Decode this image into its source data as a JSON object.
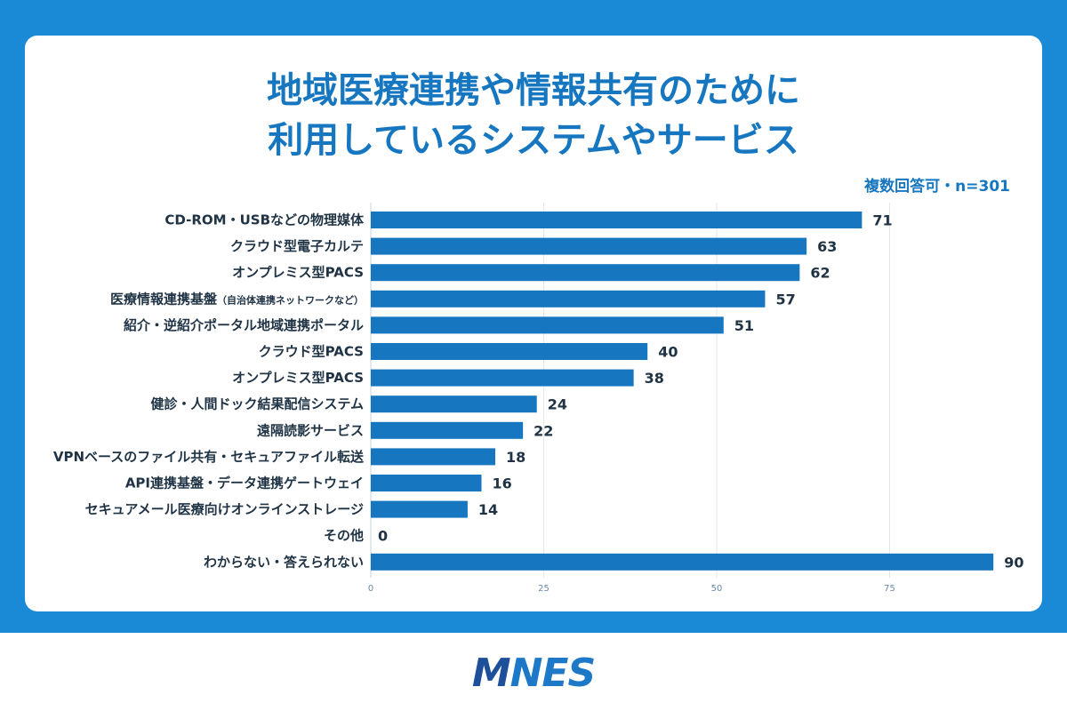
{
  "title_lines": [
    "地域医療連携や情報共有のために",
    "利用しているシステムやサービス"
  ],
  "note": "複数回答可・n=301",
  "brand": {
    "logo_prefix": "M",
    "logo_text": "NES",
    "color_primary": "#1e78c8",
    "color_dark": "#1d4f9a"
  },
  "colors": {
    "background": "#1b8ad6",
    "bar": "#1677c0",
    "title": "#1677c0"
  },
  "chart_data": {
    "type": "bar",
    "orientation": "horizontal",
    "categories": [
      "CD-ROM・USBなどの物理媒体",
      "クラウド型電子カルテ",
      "オンプレミス型PACS",
      "医療情報連携基盤",
      "紹介・逆紹介ポータル地域連携ポータル",
      "クラウド型PACS",
      "オンプレミス型PACS",
      "健診・人間ドック結果配信システム",
      "遠隔読影サービス",
      "VPNベースのファイル共有・セキュアファイル転送",
      "API連携基盤・データ連携ゲートウェイ",
      "セキュアメール医療向けオンラインストレージ",
      "その他",
      "わからない・答えられない"
    ],
    "category_notes": [
      "",
      "",
      "",
      "（自治体連携ネットワークなど）",
      "",
      "",
      "",
      "",
      "",
      "",
      "",
      "",
      "",
      ""
    ],
    "values": [
      71,
      63,
      62,
      57,
      51,
      40,
      38,
      24,
      22,
      18,
      16,
      14,
      0,
      90
    ],
    "xlim": [
      0,
      92
    ],
    "xticks": [
      0,
      25,
      50,
      75
    ],
    "grid": true,
    "title": "地域医療連携や情報共有のために利用しているシステムやサービス",
    "xlabel": "",
    "ylabel": ""
  }
}
